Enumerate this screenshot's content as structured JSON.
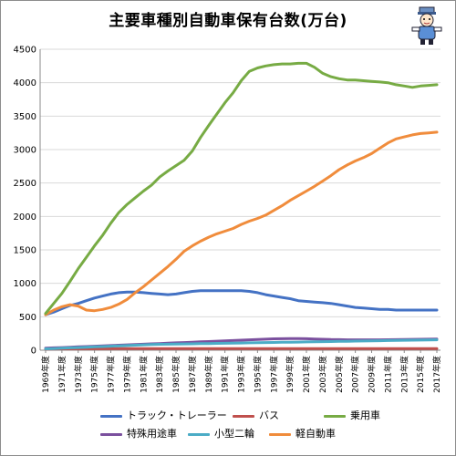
{
  "title": "主要車種別自動車保有台数(万台)",
  "colors": {
    "truck": "#4472c4",
    "bus": "#c0504d",
    "car": "#77ab44",
    "special": "#7b509e",
    "moto": "#4bacc6",
    "kei": "#f08c3c"
  },
  "chart_data": {
    "type": "line",
    "title": "主要車種別自動車保有台数(万台)",
    "xlabel": "",
    "ylabel": "",
    "ylim": [
      0,
      4500
    ],
    "yticks": [
      0,
      500,
      1000,
      1500,
      2000,
      2500,
      3000,
      3500,
      4000,
      4500
    ],
    "grid": true,
    "legend_position": "bottom",
    "x": [
      "1969年度",
      "1970年度",
      "1971年度",
      "1972年度",
      "1973年度",
      "1974年度",
      "1975年度",
      "1976年度",
      "1977年度",
      "1978年度",
      "1979年度",
      "1980年度",
      "1981年度",
      "1982年度",
      "1983年度",
      "1984年度",
      "1985年度",
      "1986年度",
      "1987年度",
      "1988年度",
      "1989年度",
      "1990年度",
      "1991年度",
      "1992年度",
      "1993年度",
      "1994年度",
      "1995年度",
      "1996年度",
      "1997年度",
      "1998年度",
      "1999年度",
      "2000年度",
      "2001年度",
      "2002年度",
      "2003年度",
      "2004年度",
      "2005年度",
      "2006年度",
      "2007年度",
      "2008年度",
      "2009年度",
      "2010年度",
      "2011年度",
      "2012年度",
      "2013年度",
      "2014年度",
      "2015年度",
      "2016年度",
      "2017年度"
    ],
    "x_tick_labels": [
      "1969年度",
      "1971年度",
      "1973年度",
      "1975年度",
      "1977年度",
      "1979年度",
      "1981年度",
      "1983年度",
      "1985年度",
      "1987年度",
      "1989年度",
      "1991年度",
      "1993年度",
      "1995年度",
      "1997年度",
      "1999年度",
      "2001年度",
      "2003年度",
      "2005年度",
      "2007年度",
      "2009年度",
      "2011年度",
      "2013年度",
      "2015年度",
      "2017年度"
    ],
    "series": [
      {
        "name": "トラック・トレーラー",
        "color_key": "truck",
        "values": [
          530,
          570,
          620,
          670,
          700,
          740,
          780,
          810,
          840,
          860,
          870,
          870,
          860,
          850,
          840,
          830,
          840,
          860,
          880,
          890,
          890,
          890,
          890,
          890,
          890,
          880,
          860,
          830,
          810,
          790,
          770,
          740,
          730,
          720,
          710,
          700,
          680,
          660,
          640,
          630,
          620,
          610,
          610,
          600,
          600,
          600,
          600,
          600,
          600
        ]
      },
      {
        "name": "バス",
        "color_key": "bus",
        "values": [
          18,
          19,
          20,
          21,
          21,
          22,
          22,
          22,
          23,
          23,
          23,
          23,
          23,
          23,
          23,
          23,
          23,
          23,
          24,
          24,
          24,
          24,
          24,
          24,
          24,
          24,
          24,
          24,
          24,
          24,
          23,
          23,
          23,
          23,
          23,
          23,
          23,
          23,
          23,
          23,
          23,
          23,
          23,
          23,
          23,
          23,
          23,
          23,
          23
        ]
      },
      {
        "name": "乗用車",
        "color_key": "car",
        "values": [
          550,
          700,
          850,
          1030,
          1220,
          1390,
          1560,
          1720,
          1900,
          2060,
          2180,
          2280,
          2380,
          2470,
          2590,
          2680,
          2760,
          2840,
          2980,
          3180,
          3360,
          3530,
          3700,
          3850,
          4030,
          4170,
          4220,
          4250,
          4270,
          4280,
          4280,
          4290,
          4290,
          4230,
          4140,
          4090,
          4060,
          4040,
          4040,
          4030,
          4020,
          4010,
          4000,
          3970,
          3950,
          3930,
          3950,
          3960,
          3970
        ]
      },
      {
        "name": "特殊用途車",
        "color_key": "special",
        "values": [
          30,
          35,
          40,
          45,
          50,
          55,
          60,
          65,
          70,
          75,
          80,
          85,
          90,
          95,
          100,
          105,
          110,
          115,
          120,
          125,
          130,
          135,
          140,
          145,
          150,
          155,
          160,
          165,
          170,
          172,
          174,
          174,
          172,
          168,
          164,
          160,
          158,
          156,
          155,
          155,
          155,
          156,
          157,
          158,
          160,
          162,
          164,
          165,
          166
        ]
      },
      {
        "name": "小型二輪",
        "color_key": "moto",
        "values": [
          20,
          25,
          30,
          35,
          40,
          45,
          50,
          55,
          60,
          65,
          70,
          75,
          80,
          85,
          88,
          90,
          92,
          94,
          96,
          98,
          100,
          102,
          104,
          106,
          108,
          110,
          112,
          114,
          116,
          118,
          120,
          122,
          124,
          126,
          128,
          130,
          132,
          134,
          136,
          138,
          140,
          142,
          144,
          146,
          148,
          150,
          152,
          154,
          156
        ]
      },
      {
        "name": "軽自動車",
        "color_key": "kei",
        "values": [
          530,
          600,
          650,
          680,
          660,
          600,
          590,
          610,
          640,
          690,
          760,
          860,
          950,
          1050,
          1150,
          1250,
          1360,
          1480,
          1560,
          1630,
          1690,
          1740,
          1780,
          1820,
          1880,
          1930,
          1970,
          2020,
          2090,
          2160,
          2240,
          2310,
          2380,
          2450,
          2530,
          2610,
          2700,
          2770,
          2830,
          2880,
          2940,
          3020,
          3100,
          3160,
          3190,
          3220,
          3240,
          3250,
          3260
        ]
      }
    ]
  }
}
